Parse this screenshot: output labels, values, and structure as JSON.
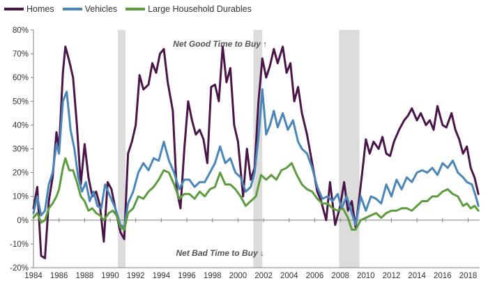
{
  "chart_data": {
    "type": "line",
    "title": "",
    "xlabel": "",
    "ylabel": "",
    "xlim": [
      1984.0,
      2018.9
    ],
    "ylim": [
      -20,
      80
    ],
    "y_ticks": [
      -20,
      -10,
      0,
      10,
      20,
      30,
      40,
      50,
      60,
      70,
      80
    ],
    "y_tick_labels": [
      "-20%",
      "-10%",
      "0%",
      "10%",
      "20%",
      "30%",
      "40%",
      "50%",
      "60%",
      "70%",
      "80%"
    ],
    "x_ticks": [
      1984,
      1986,
      1988,
      1990,
      1992,
      1994,
      1996,
      1998,
      2000,
      2002,
      2004,
      2006,
      2008,
      2010,
      2012,
      2014,
      2016,
      2018
    ],
    "legend_position": "top-left",
    "grid": "none",
    "recession_shading": [
      [
        1990.6,
        1991.2
      ],
      [
        2001.2,
        2001.9
      ],
      [
        2007.9,
        2009.5
      ]
    ],
    "annotations": [
      {
        "text": "Net Good Time to Buy ↑",
        "x": 1998.6,
        "y": 73
      },
      {
        "text": "Net Bad Time to Buy ↓",
        "x": 1998.6,
        "y": -15
      }
    ],
    "series": [
      {
        "name": "Homes",
        "color": "#4a1548",
        "points": [
          [
            1984.0,
            5
          ],
          [
            1984.3,
            14
          ],
          [
            1984.6,
            -15
          ],
          [
            1984.9,
            -16
          ],
          [
            1985.2,
            8
          ],
          [
            1985.5,
            18
          ],
          [
            1985.8,
            37
          ],
          [
            1986.0,
            30
          ],
          [
            1986.3,
            62
          ],
          [
            1986.5,
            73
          ],
          [
            1986.8,
            67
          ],
          [
            1987.1,
            60
          ],
          [
            1987.4,
            40
          ],
          [
            1987.7,
            15
          ],
          [
            1988.0,
            32
          ],
          [
            1988.3,
            18
          ],
          [
            1988.6,
            10
          ],
          [
            1988.9,
            12
          ],
          [
            1989.2,
            6
          ],
          [
            1989.5,
            -9
          ],
          [
            1989.8,
            16
          ],
          [
            1990.1,
            13
          ],
          [
            1990.4,
            5
          ],
          [
            1990.8,
            -5
          ],
          [
            1991.1,
            -8
          ],
          [
            1991.4,
            28
          ],
          [
            1991.7,
            33
          ],
          [
            1992.0,
            40
          ],
          [
            1992.3,
            61
          ],
          [
            1992.6,
            55
          ],
          [
            1993.0,
            57
          ],
          [
            1993.3,
            66
          ],
          [
            1993.6,
            62
          ],
          [
            1993.9,
            70
          ],
          [
            1994.2,
            72
          ],
          [
            1994.5,
            58
          ],
          [
            1994.9,
            46
          ],
          [
            1995.2,
            13
          ],
          [
            1995.5,
            5
          ],
          [
            1995.8,
            30
          ],
          [
            1996.1,
            50
          ],
          [
            1996.4,
            42
          ],
          [
            1996.7,
            36
          ],
          [
            1997.0,
            38
          ],
          [
            1997.3,
            34
          ],
          [
            1997.6,
            24
          ],
          [
            1997.9,
            56
          ],
          [
            1998.2,
            57
          ],
          [
            1998.5,
            50
          ],
          [
            1998.8,
            73
          ],
          [
            1999.1,
            58
          ],
          [
            1999.4,
            64
          ],
          [
            1999.7,
            40
          ],
          [
            2000.0,
            33
          ],
          [
            2000.4,
            10
          ],
          [
            2000.7,
            30
          ],
          [
            2001.0,
            17
          ],
          [
            2001.3,
            22
          ],
          [
            2001.6,
            50
          ],
          [
            2001.9,
            68
          ],
          [
            2002.2,
            60
          ],
          [
            2002.5,
            65
          ],
          [
            2002.8,
            72
          ],
          [
            2003.1,
            66
          ],
          [
            2003.5,
            73
          ],
          [
            2003.8,
            62
          ],
          [
            2004.1,
            66
          ],
          [
            2004.4,
            50
          ],
          [
            2004.7,
            56
          ],
          [
            2005.0,
            45
          ],
          [
            2005.4,
            36
          ],
          [
            2005.8,
            24
          ],
          [
            2006.2,
            12
          ],
          [
            2006.5,
            8
          ],
          [
            2006.9,
            0
          ],
          [
            2007.2,
            16
          ],
          [
            2007.6,
            -2
          ],
          [
            2008.0,
            6
          ],
          [
            2008.3,
            16
          ],
          [
            2008.6,
            4
          ],
          [
            2008.9,
            8
          ],
          [
            2009.2,
            -3
          ],
          [
            2009.5,
            10
          ],
          [
            2009.8,
            24
          ],
          [
            2010.0,
            34
          ],
          [
            2010.3,
            28
          ],
          [
            2010.6,
            33
          ],
          [
            2011.0,
            30
          ],
          [
            2011.3,
            35
          ],
          [
            2011.6,
            28
          ],
          [
            2011.9,
            27
          ],
          [
            2012.2,
            33
          ],
          [
            2012.6,
            38
          ],
          [
            2013.0,
            42
          ],
          [
            2013.3,
            44
          ],
          [
            2013.6,
            47
          ],
          [
            2014.0,
            42
          ],
          [
            2014.3,
            45
          ],
          [
            2014.7,
            40
          ],
          [
            2015.0,
            42
          ],
          [
            2015.3,
            38
          ],
          [
            2015.6,
            48
          ],
          [
            2016.0,
            40
          ],
          [
            2016.3,
            39
          ],
          [
            2016.7,
            45
          ],
          [
            2017.0,
            38
          ],
          [
            2017.3,
            34
          ],
          [
            2017.6,
            28
          ],
          [
            2017.9,
            31
          ],
          [
            2018.2,
            22
          ],
          [
            2018.5,
            18
          ],
          [
            2018.8,
            11
          ]
        ]
      },
      {
        "name": "Vehicles",
        "color": "#4a86b8",
        "points": [
          [
            1984.0,
            3
          ],
          [
            1984.3,
            10
          ],
          [
            1984.6,
            2
          ],
          [
            1984.9,
            4
          ],
          [
            1985.2,
            15
          ],
          [
            1985.5,
            20
          ],
          [
            1985.8,
            32
          ],
          [
            1986.0,
            28
          ],
          [
            1986.3,
            50
          ],
          [
            1986.6,
            54
          ],
          [
            1986.9,
            38
          ],
          [
            1987.2,
            30
          ],
          [
            1987.5,
            18
          ],
          [
            1987.8,
            12
          ],
          [
            1988.1,
            16
          ],
          [
            1988.4,
            8
          ],
          [
            1988.7,
            12
          ],
          [
            1989.0,
            6
          ],
          [
            1989.3,
            5
          ],
          [
            1989.6,
            15
          ],
          [
            1990.0,
            10
          ],
          [
            1990.4,
            5
          ],
          [
            1990.8,
            -2
          ],
          [
            1991.1,
            -3
          ],
          [
            1991.4,
            7
          ],
          [
            1991.8,
            12
          ],
          [
            1992.2,
            20
          ],
          [
            1992.6,
            24
          ],
          [
            1993.0,
            21
          ],
          [
            1993.4,
            26
          ],
          [
            1993.8,
            25
          ],
          [
            1994.2,
            33
          ],
          [
            1994.6,
            25
          ],
          [
            1995.0,
            20
          ],
          [
            1995.4,
            13
          ],
          [
            1995.8,
            17
          ],
          [
            1996.2,
            17
          ],
          [
            1996.6,
            14
          ],
          [
            1997.0,
            16
          ],
          [
            1997.4,
            16
          ],
          [
            1997.8,
            20
          ],
          [
            1998.2,
            24
          ],
          [
            1998.6,
            31
          ],
          [
            1999.0,
            24
          ],
          [
            1999.4,
            26
          ],
          [
            1999.8,
            20
          ],
          [
            2000.2,
            18
          ],
          [
            2000.6,
            12
          ],
          [
            2001.0,
            14
          ],
          [
            2001.3,
            20
          ],
          [
            2001.6,
            35
          ],
          [
            2001.9,
            55
          ],
          [
            2002.2,
            36
          ],
          [
            2002.5,
            40
          ],
          [
            2002.8,
            46
          ],
          [
            2003.1,
            39
          ],
          [
            2003.5,
            45
          ],
          [
            2003.9,
            38
          ],
          [
            2004.3,
            42
          ],
          [
            2004.7,
            33
          ],
          [
            2005.0,
            30
          ],
          [
            2005.4,
            28
          ],
          [
            2005.8,
            22
          ],
          [
            2006.2,
            14
          ],
          [
            2006.6,
            9
          ],
          [
            2007.0,
            10
          ],
          [
            2007.4,
            8
          ],
          [
            2007.8,
            11
          ],
          [
            2008.1,
            5
          ],
          [
            2008.5,
            10
          ],
          [
            2008.9,
            3
          ],
          [
            2009.2,
            -2
          ],
          [
            2009.6,
            10
          ],
          [
            2010.0,
            4
          ],
          [
            2010.4,
            10
          ],
          [
            2010.8,
            9
          ],
          [
            2011.2,
            7
          ],
          [
            2011.6,
            15
          ],
          [
            2012.0,
            10
          ],
          [
            2012.4,
            17
          ],
          [
            2012.8,
            13
          ],
          [
            2013.2,
            18
          ],
          [
            2013.6,
            16
          ],
          [
            2014.0,
            20
          ],
          [
            2014.4,
            21
          ],
          [
            2014.8,
            20
          ],
          [
            2015.2,
            22
          ],
          [
            2015.6,
            19
          ],
          [
            2016.0,
            24
          ],
          [
            2016.4,
            22
          ],
          [
            2016.8,
            25
          ],
          [
            2017.2,
            20
          ],
          [
            2017.6,
            18
          ],
          [
            2017.9,
            16
          ],
          [
            2018.3,
            15
          ],
          [
            2018.6,
            10
          ],
          [
            2018.8,
            6
          ]
        ]
      },
      {
        "name": "Large Household Durables",
        "color": "#5c9c3e",
        "points": [
          [
            1984.0,
            1
          ],
          [
            1984.3,
            3
          ],
          [
            1984.6,
            -1
          ],
          [
            1984.9,
            0
          ],
          [
            1985.2,
            5
          ],
          [
            1985.5,
            7
          ],
          [
            1985.8,
            10
          ],
          [
            1986.0,
            13
          ],
          [
            1986.3,
            22
          ],
          [
            1986.5,
            26
          ],
          [
            1986.8,
            21
          ],
          [
            1987.1,
            21
          ],
          [
            1987.4,
            16
          ],
          [
            1987.7,
            10
          ],
          [
            1988.0,
            8
          ],
          [
            1988.3,
            4
          ],
          [
            1988.6,
            5
          ],
          [
            1988.9,
            3
          ],
          [
            1989.2,
            2
          ],
          [
            1989.5,
            0
          ],
          [
            1989.9,
            3
          ],
          [
            1990.2,
            4
          ],
          [
            1990.5,
            2
          ],
          [
            1990.8,
            -3
          ],
          [
            1991.1,
            -4
          ],
          [
            1991.4,
            3
          ],
          [
            1991.8,
            5
          ],
          [
            1992.2,
            10
          ],
          [
            1992.6,
            9
          ],
          [
            1993.0,
            12
          ],
          [
            1993.4,
            14
          ],
          [
            1993.8,
            17
          ],
          [
            1994.2,
            21
          ],
          [
            1994.6,
            20
          ],
          [
            1995.0,
            15
          ],
          [
            1995.4,
            9
          ],
          [
            1995.8,
            11
          ],
          [
            1996.2,
            11
          ],
          [
            1996.6,
            9
          ],
          [
            1997.0,
            12
          ],
          [
            1997.4,
            10
          ],
          [
            1997.8,
            13
          ],
          [
            1998.2,
            14
          ],
          [
            1998.6,
            20
          ],
          [
            1999.0,
            15
          ],
          [
            1999.4,
            15
          ],
          [
            1999.8,
            13
          ],
          [
            2000.2,
            10
          ],
          [
            2000.6,
            6
          ],
          [
            2001.0,
            8
          ],
          [
            2001.4,
            10
          ],
          [
            2001.8,
            19
          ],
          [
            2002.2,
            17
          ],
          [
            2002.6,
            19
          ],
          [
            2003.0,
            17
          ],
          [
            2003.4,
            21
          ],
          [
            2003.8,
            22
          ],
          [
            2004.2,
            24
          ],
          [
            2004.6,
            19
          ],
          [
            2005.0,
            15
          ],
          [
            2005.4,
            13
          ],
          [
            2005.8,
            12
          ],
          [
            2006.2,
            9
          ],
          [
            2006.6,
            7
          ],
          [
            2007.0,
            7
          ],
          [
            2007.4,
            5
          ],
          [
            2007.8,
            4
          ],
          [
            2008.2,
            5
          ],
          [
            2008.6,
            1
          ],
          [
            2008.9,
            -4
          ],
          [
            2009.2,
            -4
          ],
          [
            2009.6,
            0
          ],
          [
            2010.0,
            1
          ],
          [
            2010.4,
            2
          ],
          [
            2010.8,
            3
          ],
          [
            2011.2,
            1
          ],
          [
            2011.6,
            3
          ],
          [
            2012.0,
            4
          ],
          [
            2012.4,
            4
          ],
          [
            2012.8,
            5
          ],
          [
            2013.2,
            5
          ],
          [
            2013.6,
            4
          ],
          [
            2014.0,
            6
          ],
          [
            2014.4,
            8
          ],
          [
            2014.8,
            8
          ],
          [
            2015.2,
            10
          ],
          [
            2015.6,
            10
          ],
          [
            2016.0,
            12
          ],
          [
            2016.4,
            13
          ],
          [
            2016.8,
            11
          ],
          [
            2017.2,
            10
          ],
          [
            2017.6,
            6
          ],
          [
            2017.9,
            7
          ],
          [
            2018.2,
            5
          ],
          [
            2018.5,
            6
          ],
          [
            2018.8,
            4
          ]
        ]
      }
    ]
  }
}
